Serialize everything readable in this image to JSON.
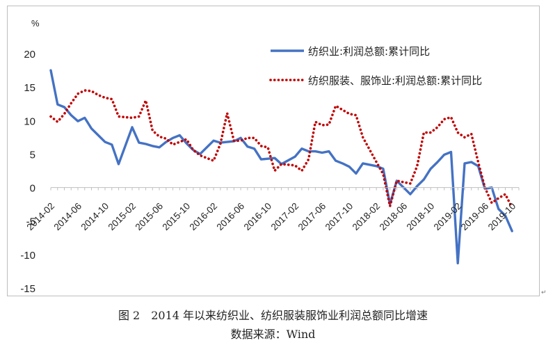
{
  "chart_data": {
    "type": "line",
    "unit_label": "%",
    "yticks": [
      20,
      15,
      10,
      5,
      0,
      -5,
      -10,
      -15
    ],
    "ylim": [
      -15,
      20
    ],
    "x_tick_labels": [
      "2014-02",
      "2014-06",
      "2014-10",
      "2015-02",
      "2015-06",
      "2015-10",
      "2016-02",
      "2016-06",
      "2016-10",
      "2017-02",
      "2017-06",
      "2017-10",
      "2018-02",
      "2018-06",
      "2018-10",
      "2019-02",
      "2019-06",
      "2019-10"
    ],
    "legend_position": "top-right",
    "series": [
      {
        "name": "纺织业:利润总额:累计同比",
        "color": "#4472C4",
        "style": "solid",
        "points": [
          [
            "2014-02",
            17.5
          ],
          [
            "2014-03",
            12.4
          ],
          [
            "2014-04",
            12.0
          ],
          [
            "2014-05",
            10.8
          ],
          [
            "2014-06",
            9.9
          ],
          [
            "2014-07",
            10.4
          ],
          [
            "2014-08",
            8.8
          ],
          [
            "2014-09",
            7.8
          ],
          [
            "2014-10",
            6.8
          ],
          [
            "2014-11",
            6.4
          ],
          [
            "2014-12",
            3.5
          ],
          [
            "2015-02",
            9.0
          ],
          [
            "2015-03",
            6.7
          ],
          [
            "2015-04",
            6.5
          ],
          [
            "2015-05",
            6.2
          ],
          [
            "2015-06",
            6.0
          ],
          [
            "2015-07",
            6.8
          ],
          [
            "2015-08",
            7.4
          ],
          [
            "2015-09",
            7.8
          ],
          [
            "2015-10",
            6.6
          ],
          [
            "2015-11",
            5.6
          ],
          [
            "2015-12",
            5.0
          ],
          [
            "2016-02",
            7.0
          ],
          [
            "2016-03",
            6.7
          ],
          [
            "2016-04",
            6.8
          ],
          [
            "2016-05",
            6.9
          ],
          [
            "2016-06",
            7.4
          ],
          [
            "2016-07",
            6.1
          ],
          [
            "2016-08",
            5.8
          ],
          [
            "2016-09",
            4.2
          ],
          [
            "2016-10",
            4.3
          ],
          [
            "2016-11",
            4.4
          ],
          [
            "2016-12",
            3.5
          ],
          [
            "2017-02",
            4.6
          ],
          [
            "2017-03",
            5.8
          ],
          [
            "2017-04",
            5.4
          ],
          [
            "2017-05",
            5.4
          ],
          [
            "2017-06",
            5.2
          ],
          [
            "2017-07",
            5.4
          ],
          [
            "2017-08",
            4.0
          ],
          [
            "2017-09",
            3.6
          ],
          [
            "2017-10",
            3.1
          ],
          [
            "2017-11",
            2.1
          ],
          [
            "2017-12",
            3.6
          ],
          [
            "2018-02",
            3.2
          ],
          [
            "2018-03",
            2.8
          ],
          [
            "2018-04",
            -2.5
          ],
          [
            "2018-05",
            1.0
          ],
          [
            "2018-06",
            0.0
          ],
          [
            "2018-07",
            -1.0
          ],
          [
            "2018-08",
            0.2
          ],
          [
            "2018-09",
            1.2
          ],
          [
            "2018-10",
            2.8
          ],
          [
            "2018-11",
            3.8
          ],
          [
            "2018-12",
            4.9
          ],
          [
            "2019-01",
            5.3
          ],
          [
            "2019-02",
            -11.3
          ],
          [
            "2019-03",
            3.6
          ],
          [
            "2019-04",
            3.8
          ],
          [
            "2019-05",
            3.2
          ],
          [
            "2019-06",
            -0.2
          ],
          [
            "2019-07",
            0.0
          ],
          [
            "2019-08",
            -3.2
          ],
          [
            "2019-09",
            -4.2
          ],
          [
            "2019-10",
            -6.5
          ]
        ]
      },
      {
        "name": "纺织服装、服饰业:利润总额:累计同比",
        "color": "#C00000",
        "style": "dotted",
        "points": [
          [
            "2014-02",
            10.6
          ],
          [
            "2014-03",
            9.8
          ],
          [
            "2014-04",
            11.0
          ],
          [
            "2014-05",
            12.6
          ],
          [
            "2014-06",
            14.0
          ],
          [
            "2014-07",
            14.5
          ],
          [
            "2014-08",
            14.4
          ],
          [
            "2014-09",
            13.8
          ],
          [
            "2014-10",
            13.4
          ],
          [
            "2014-11",
            13.2
          ],
          [
            "2014-12",
            10.6
          ],
          [
            "2015-02",
            10.4
          ],
          [
            "2015-03",
            10.6
          ],
          [
            "2015-04",
            13.0
          ],
          [
            "2015-05",
            8.5
          ],
          [
            "2015-06",
            7.6
          ],
          [
            "2015-07",
            7.3
          ],
          [
            "2015-08",
            6.4
          ],
          [
            "2015-09",
            6.8
          ],
          [
            "2015-10",
            7.2
          ],
          [
            "2015-11",
            5.6
          ],
          [
            "2015-12",
            4.8
          ],
          [
            "2016-02",
            4.0
          ],
          [
            "2016-03",
            6.5
          ],
          [
            "2016-04",
            11.1
          ],
          [
            "2016-05",
            7.0
          ],
          [
            "2016-06",
            7.0
          ],
          [
            "2016-07",
            7.4
          ],
          [
            "2016-08",
            7.4
          ],
          [
            "2016-09",
            6.2
          ],
          [
            "2016-10",
            6.0
          ],
          [
            "2016-11",
            2.5
          ],
          [
            "2016-12",
            3.5
          ],
          [
            "2017-02",
            3.3
          ],
          [
            "2017-03",
            2.5
          ],
          [
            "2017-04",
            4.2
          ],
          [
            "2017-05",
            9.8
          ],
          [
            "2017-06",
            9.3
          ],
          [
            "2017-07",
            9.4
          ],
          [
            "2017-08",
            12.2
          ],
          [
            "2017-09",
            11.6
          ],
          [
            "2017-10",
            11.0
          ],
          [
            "2017-11",
            10.8
          ],
          [
            "2017-12",
            7.5
          ],
          [
            "2018-02",
            3.8
          ],
          [
            "2018-03",
            2.0
          ],
          [
            "2018-04",
            -2.8
          ],
          [
            "2018-05",
            1.0
          ],
          [
            "2018-06",
            0.8
          ],
          [
            "2018-07",
            0.6
          ],
          [
            "2018-08",
            3.2
          ],
          [
            "2018-09",
            8.2
          ],
          [
            "2018-10",
            8.2
          ],
          [
            "2018-11",
            9.0
          ],
          [
            "2018-12",
            10.2
          ],
          [
            "2019-01",
            10.5
          ],
          [
            "2019-02",
            8.2
          ],
          [
            "2019-03",
            7.5
          ],
          [
            "2019-04",
            8.0
          ],
          [
            "2019-05",
            3.8
          ],
          [
            "2019-06",
            0.0
          ],
          [
            "2019-07",
            -2.3
          ],
          [
            "2019-08",
            -1.6
          ],
          [
            "2019-09",
            -1.0
          ],
          [
            "2019-10",
            -3.0
          ]
        ]
      }
    ]
  },
  "caption": "图 2　2014 年以来纺织业、纺织服装服饰业利润总额同比增速",
  "source": "数据来源：Wind"
}
